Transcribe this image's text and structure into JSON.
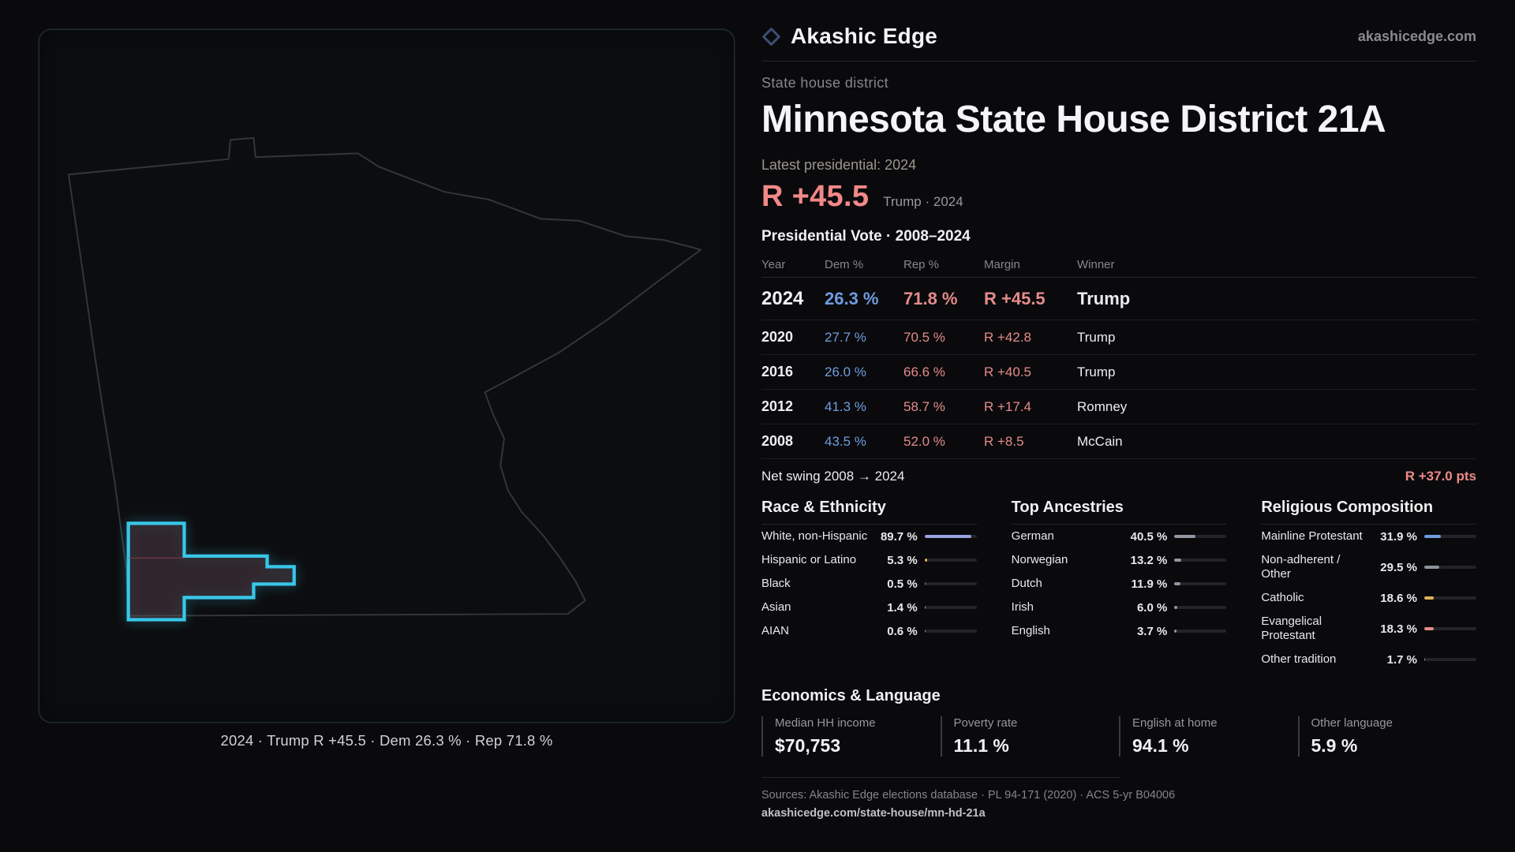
{
  "map": {
    "caption": "2024 · Trump R +45.5 · Dem 26.3 % · Rep 71.8 %"
  },
  "header": {
    "brand": "Akashic Edge",
    "site": "akashicedge.com",
    "kicker": "State house district",
    "title": "Minnesota State House District 21A"
  },
  "latest": {
    "label": "Latest presidential: 2024",
    "value": "R +45.5",
    "note": "Trump · 2024"
  },
  "table": {
    "title": "Presidential Vote · 2008–2024",
    "columns": [
      "Year",
      "Dem %",
      "Rep %",
      "Margin",
      "Winner"
    ],
    "rows": [
      {
        "year": "2024",
        "dem": "26.3 %",
        "rep": "71.8 %",
        "margin": "R +45.5",
        "winner": "Trump"
      },
      {
        "year": "2020",
        "dem": "27.7 %",
        "rep": "70.5 %",
        "margin": "R +42.8",
        "winner": "Trump"
      },
      {
        "year": "2016",
        "dem": "26.0 %",
        "rep": "66.6 %",
        "margin": "R +40.5",
        "winner": "Trump"
      },
      {
        "year": "2012",
        "dem": "41.3 %",
        "rep": "58.7 %",
        "margin": "R +17.4",
        "winner": "Romney"
      },
      {
        "year": "2008",
        "dem": "43.5 %",
        "rep": "52.0 %",
        "margin": "R +8.5",
        "winner": "McCain"
      }
    ],
    "swing_label": "Net swing 2008 → 2024",
    "swing_value": "R +37.0 pts"
  },
  "demographics": [
    {
      "title": "Race & Ethnicity",
      "rows": [
        {
          "label": "White, non-Hispanic",
          "value": "89.7 %",
          "pct": 89.7,
          "color": "#9aa3e0"
        },
        {
          "label": "Hispanic or Latino",
          "value": "5.3 %",
          "pct": 5.3,
          "color": "#e0b355"
        },
        {
          "label": "Black",
          "value": "0.5 %",
          "pct": 0.5,
          "color": "#8e939c"
        },
        {
          "label": "Asian",
          "value": "1.4 %",
          "pct": 1.4,
          "color": "#62c9a8"
        },
        {
          "label": "AIAN",
          "value": "0.6 %",
          "pct": 0.6,
          "color": "#8e939c"
        }
      ]
    },
    {
      "title": "Top Ancestries",
      "rows": [
        {
          "label": "German",
          "value": "40.5 %",
          "pct": 40.5,
          "color": "#9097a3"
        },
        {
          "label": "Norwegian",
          "value": "13.2 %",
          "pct": 13.2,
          "color": "#9097a3"
        },
        {
          "label": "Dutch",
          "value": "11.9 %",
          "pct": 11.9,
          "color": "#9097a3"
        },
        {
          "label": "Irish",
          "value": "6.0 %",
          "pct": 6.0,
          "color": "#9097a3"
        },
        {
          "label": "English",
          "value": "3.7 %",
          "pct": 3.7,
          "color": "#9097a3"
        }
      ]
    },
    {
      "title": "Religious Composition",
      "rows": [
        {
          "label": "Mainline Protestant",
          "value": "31.9 %",
          "pct": 31.9,
          "color": "#6f9ce0"
        },
        {
          "label": "Non-adherent / Other",
          "value": "29.5 %",
          "pct": 29.5,
          "color": "#8e939c"
        },
        {
          "label": "Catholic",
          "value": "18.6 %",
          "pct": 18.6,
          "color": "#e0b355"
        },
        {
          "label": "Evangelical Protestant",
          "value": "18.3 %",
          "pct": 18.3,
          "color": "#e58b8b"
        },
        {
          "label": "Other tradition",
          "value": "1.7 %",
          "pct": 1.7,
          "color": "#8e939c"
        }
      ]
    }
  ],
  "economics": {
    "title": "Economics & Language",
    "stats": [
      {
        "label": "Median HH income",
        "value": "$70,753"
      },
      {
        "label": "Poverty rate",
        "value": "11.1 %"
      },
      {
        "label": "English at home",
        "value": "94.1 %"
      },
      {
        "label": "Other language",
        "value": "5.9 %"
      }
    ]
  },
  "footer": {
    "sources": "Sources: Akashic Edge elections database · PL 94-171 (2020) · ACS 5-yr B04006",
    "permalink": "akashicedge.com/state-house/mn-hd-21a"
  }
}
